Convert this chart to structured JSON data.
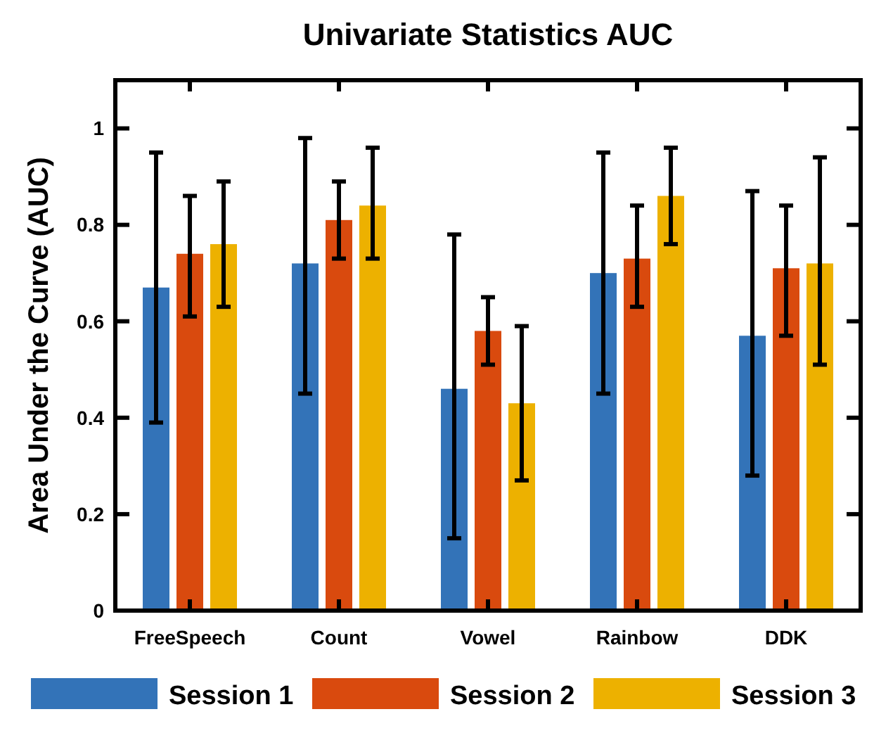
{
  "chart_data": {
    "type": "bar",
    "title": "Univariate Statistics AUC",
    "ylabel": "Area Under the Curve (AUC)",
    "categories": [
      "FreeSpeech",
      "Count",
      "Vowel",
      "Rainbow",
      "DDK"
    ],
    "series": [
      {
        "name": "Session 1",
        "color": "#3373b8",
        "values": [
          0.67,
          0.72,
          0.46,
          0.7,
          0.57
        ],
        "errors": [
          [
            0.39,
            0.95
          ],
          [
            0.45,
            0.98
          ],
          [
            0.15,
            0.78
          ],
          [
            0.45,
            0.95
          ],
          [
            0.28,
            0.87
          ]
        ]
      },
      {
        "name": "Session 2",
        "color": "#d94a0e",
        "values": [
          0.74,
          0.81,
          0.58,
          0.73,
          0.71
        ],
        "errors": [
          [
            0.61,
            0.86
          ],
          [
            0.73,
            0.89
          ],
          [
            0.51,
            0.65
          ],
          [
            0.63,
            0.84
          ],
          [
            0.57,
            0.84
          ]
        ]
      },
      {
        "name": "Session 3",
        "color": "#edb100",
        "values": [
          0.76,
          0.84,
          0.43,
          0.86,
          0.72
        ],
        "errors": [
          [
            0.63,
            0.89
          ],
          [
            0.73,
            0.96
          ],
          [
            0.27,
            0.59
          ],
          [
            0.76,
            0.96
          ],
          [
            0.51,
            0.94
          ]
        ]
      }
    ],
    "ylim": [
      0,
      1.1
    ],
    "yticks": [
      0,
      0.2,
      0.4,
      0.6,
      0.8,
      1
    ],
    "legend": "bottom",
    "grid": false
  }
}
